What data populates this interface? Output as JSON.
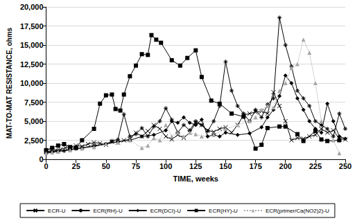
{
  "chart_data": {
    "type": "line",
    "x_label": "TIME, weeks",
    "y_label": "MAT-TO-MAT RESISTANCE, ohms",
    "xlim": [
      0,
      250
    ],
    "xticks": [
      0,
      25,
      50,
      75,
      100,
      125,
      150,
      175,
      200,
      225,
      250
    ],
    "ylim": [
      0,
      20000
    ],
    "yticks": [
      0,
      2500,
      5000,
      7500,
      10000,
      12500,
      15000,
      17500,
      20000
    ],
    "grid": true,
    "legend": "bottom",
    "series": [
      {
        "name": "ECR-U",
        "color": "#000000",
        "marker": "cross",
        "line_style": "solid",
        "x": [
          0,
          4,
          8,
          12,
          16,
          20,
          25,
          30,
          35,
          40,
          45,
          50,
          55,
          60,
          65,
          70,
          75,
          80,
          85,
          90,
          95,
          100,
          105,
          110,
          115,
          120,
          125,
          130,
          135,
          140,
          145,
          150,
          155,
          160,
          165,
          170,
          175,
          180,
          185,
          190,
          195,
          200,
          205,
          210,
          215,
          220,
          225,
          230,
          235,
          240,
          245,
          250
        ],
        "values": [
          1000,
          1100,
          1200,
          1300,
          1500,
          1600,
          1800,
          1700,
          2000,
          2200,
          2100,
          1900,
          2300,
          2200,
          2500,
          2600,
          3500,
          3000,
          3700,
          4500,
          4000,
          3000,
          2600,
          3200,
          2800,
          3500,
          4800,
          4500,
          3800,
          3600,
          4000,
          4200,
          3500,
          4500,
          5800,
          6000,
          6200,
          6300,
          6000,
          8800,
          7000,
          5000,
          2500,
          2800,
          2700,
          3000,
          3200,
          4000,
          3500,
          3800,
          2700,
          2600
        ]
      },
      {
        "name": "ECR(RH)-U",
        "color": "#000000",
        "marker": "asterisk",
        "line_style": "solid",
        "x": [
          0,
          5,
          10,
          15,
          20,
          25,
          30,
          40,
          50,
          55,
          60,
          65,
          70,
          75,
          80,
          85,
          90,
          95,
          100,
          105,
          110,
          115,
          120,
          125,
          130,
          135,
          140,
          145,
          150,
          155,
          160,
          165,
          170,
          175,
          180,
          185,
          190,
          195,
          200,
          205,
          210,
          215,
          220,
          225,
          230,
          235,
          240,
          245,
          250
        ],
        "values": [
          800,
          900,
          1000,
          1100,
          1200,
          1400,
          1500,
          1800,
          2000,
          2400,
          2600,
          5900,
          3000,
          3300,
          4100,
          3000,
          4300,
          5000,
          6700,
          5200,
          3500,
          4500,
          3800,
          5000,
          4500,
          3700,
          5000,
          7000,
          12800,
          9000,
          7000,
          6000,
          5000,
          6500,
          5500,
          7200,
          8000,
          18600,
          15000,
          12200,
          9000,
          8000,
          7000,
          5000,
          4500,
          4000,
          3000,
          6000,
          4000
        ]
      },
      {
        "name": "ECR(DCI)-U",
        "color": "#000000",
        "marker": "diamond",
        "line_style": "solid",
        "x": [
          0,
          5,
          10,
          20,
          30,
          40,
          50,
          60,
          70,
          80,
          90,
          100,
          105,
          110,
          115,
          120,
          125,
          130,
          135,
          140,
          145,
          150,
          160,
          170,
          180,
          185,
          190,
          195,
          200,
          205,
          210,
          215,
          220,
          225,
          230,
          235,
          240,
          245,
          250
        ],
        "values": [
          900,
          1000,
          1100,
          1300,
          1500,
          1700,
          2000,
          2300,
          2500,
          3000,
          3200,
          3800,
          5000,
          4800,
          5500,
          4800,
          4500,
          5200,
          3000,
          3200,
          3000,
          3500,
          3200,
          3400,
          4200,
          5500,
          6500,
          8300,
          11000,
          10000,
          8000,
          6500,
          5000,
          4000,
          3500,
          7300,
          5000,
          3000,
          2700
        ]
      },
      {
        "name": "ECR(HY)-U",
        "color": "#000000",
        "marker": "square",
        "line_style": "solid",
        "x": [
          0,
          5,
          10,
          15,
          20,
          25,
          30,
          40,
          45,
          50,
          55,
          58,
          62,
          65,
          70,
          75,
          80,
          85,
          88,
          92,
          96,
          105,
          112,
          118,
          125,
          130,
          138,
          145,
          155,
          165,
          175,
          180,
          185,
          195,
          200,
          210,
          215,
          225,
          230,
          235,
          245
        ],
        "values": [
          1200,
          1500,
          1800,
          2000,
          1600,
          1500,
          2500,
          4000,
          7300,
          8400,
          8500,
          6600,
          6400,
          8500,
          10900,
          12300,
          13800,
          13700,
          16300,
          15700,
          15300,
          13000,
          12300,
          13300,
          14300,
          10800,
          7700,
          7300,
          6000,
          5600,
          1400,
          1900,
          4100,
          4300,
          4300,
          3300,
          2400,
          3700,
          2600,
          2400,
          2500
        ]
      },
      {
        "name": "ECR(primer/Ca(NO2)2)-U",
        "color": "#a6a6a6",
        "marker": "triangle",
        "line_style": "dotted",
        "x": [
          0,
          5,
          10,
          20,
          30,
          40,
          50,
          60,
          70,
          80,
          85,
          90,
          95,
          100,
          105,
          110,
          115,
          120,
          125,
          130,
          140,
          150,
          160,
          170,
          175,
          180,
          185,
          190,
          195,
          200,
          205,
          210,
          215,
          220,
          225,
          230,
          240,
          245
        ],
        "values": [
          800,
          900,
          1000,
          1200,
          1400,
          1600,
          2000,
          2200,
          2500,
          1500,
          1800,
          2800,
          2500,
          4500,
          3000,
          3500,
          3000,
          3500,
          3300,
          3000,
          3200,
          4000,
          4500,
          5000,
          5500,
          6500,
          7000,
          6800,
          9000,
          10000,
          12000,
          12500,
          15700,
          14000,
          10000,
          5000,
          2500,
          800
        ]
      }
    ]
  }
}
